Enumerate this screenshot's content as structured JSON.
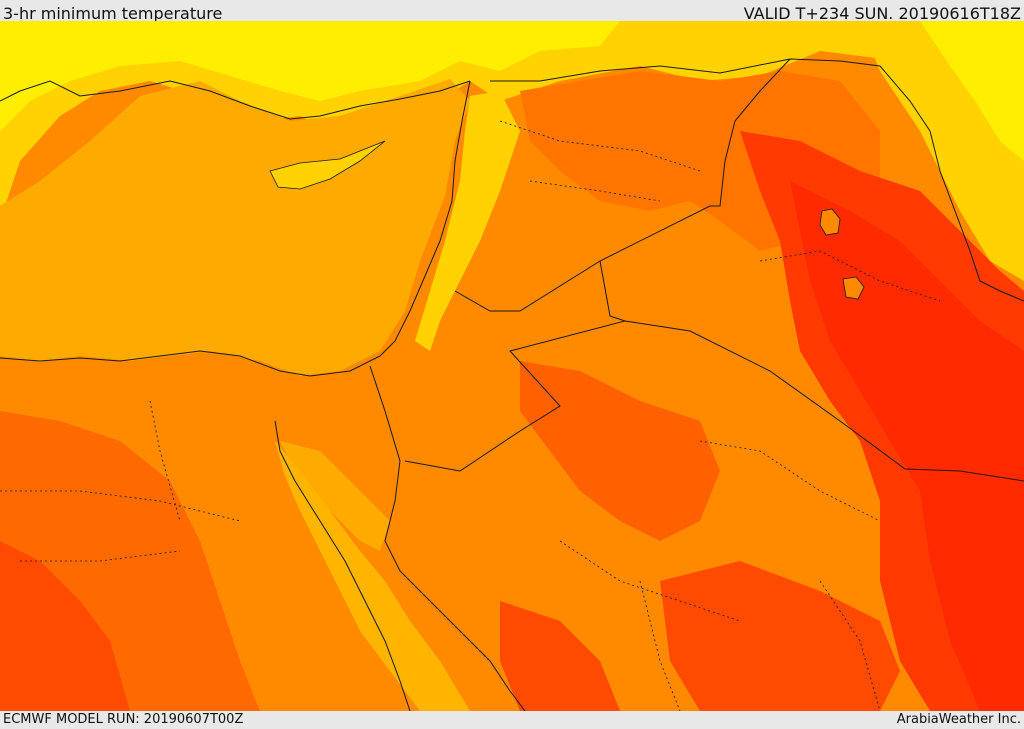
{
  "header": {
    "title": "3-hr minimum temperature",
    "valid_time": "VALID T+234 SUN. 20190616T18Z"
  },
  "footer": {
    "model_run": "ECMWF MODEL RUN: 20190607T00Z",
    "credit": "ArabiaWeather Inc."
  },
  "map": {
    "region": "Eastern Mediterranean and Middle East",
    "colors": {
      "yellow_light": "#ffff33",
      "yellow": "#ffe600",
      "gold": "#ffcc00",
      "amber": "#ffaa00",
      "orange": "#ff8a00",
      "dark_orange": "#ff6a00",
      "red_orange": "#ff4000",
      "red": "#ff2a00",
      "border_line": "#1a1a1a"
    }
  }
}
